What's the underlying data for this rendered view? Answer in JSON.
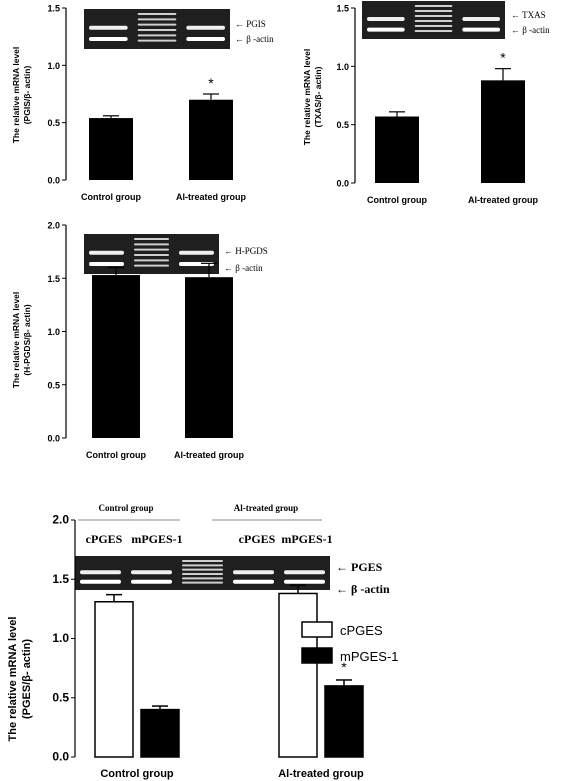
{
  "chart_data": [
    {
      "type": "bar",
      "categories": [
        "Control group",
        "Al-treated group"
      ],
      "values": [
        0.54,
        0.7
      ],
      "errors": [
        0.02,
        0.05
      ],
      "significance": [
        "",
        "*"
      ],
      "ylabel": "The relative mRNA level",
      "ylabel2": "(PGIS/β- actin)",
      "ylim": [
        0.0,
        1.5
      ],
      "yticks": [
        "0.0",
        "0.5",
        "1.0",
        "1.5"
      ],
      "gel_labels": [
        "PGIS",
        "β -actin"
      ],
      "bar_color": "#000000"
    },
    {
      "type": "bar",
      "categories": [
        "Control group",
        "Al-treated group"
      ],
      "values": [
        0.57,
        0.88
      ],
      "errors": [
        0.04,
        0.1
      ],
      "significance": [
        "",
        "*"
      ],
      "ylabel": "The relative mRNA level",
      "ylabel2": "(TXAS/β- actin)",
      "ylim": [
        0.0,
        1.5
      ],
      "yticks": [
        "0.0",
        "0.5",
        "1.0",
        "1.5"
      ],
      "gel_labels": [
        "TXAS",
        "β -actin"
      ],
      "bar_color": "#000000"
    },
    {
      "type": "bar",
      "categories": [
        "Control group",
        "Al-treated group"
      ],
      "values": [
        1.53,
        1.51
      ],
      "errors": [
        0.07,
        0.13
      ],
      "significance": [
        "",
        ""
      ],
      "ylabel": "The relative mRNA level",
      "ylabel2": "(H-PGDS/β- actin)",
      "ylim": [
        0.0,
        2.0
      ],
      "yticks": [
        "0.0",
        "0.5",
        "1.0",
        "1.5",
        "2.0"
      ],
      "gel_labels": [
        "H-PGDS",
        "β -actin"
      ],
      "bar_color": "#000000"
    },
    {
      "type": "bar",
      "categories": [
        "Control group",
        "Al-treated group"
      ],
      "series": [
        {
          "name": "cPGES",
          "values": [
            1.31,
            1.38
          ],
          "errors": [
            0.06,
            0.07
          ],
          "color": "#ffffff",
          "significance": [
            "",
            ""
          ]
        },
        {
          "name": "mPGES-1",
          "values": [
            0.4,
            0.6
          ],
          "errors": [
            0.03,
            0.05
          ],
          "color": "#000000",
          "significance": [
            "",
            "*"
          ]
        }
      ],
      "ylabel": "The relative mRNA level",
      "ylabel2": "(PGES/β- actin)",
      "ylim": [
        0.0,
        2.0
      ],
      "yticks": [
        "0.0",
        "0.5",
        "1.0",
        "1.5",
        "2.0"
      ],
      "gel_labels": [
        "PGES",
        "β -actin"
      ],
      "gel_groups": [
        "Control group",
        "Al-treated group"
      ],
      "gel_lanes": [
        "cPGES",
        "mPGES-1",
        "cPGES",
        "mPGES-1"
      ],
      "legend_position": "right"
    }
  ]
}
